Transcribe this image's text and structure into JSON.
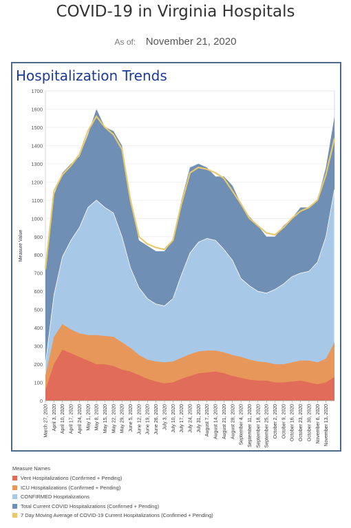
{
  "header": {
    "title": "COVID-19 in Virginia Hospitals",
    "as_of_label": "As of:",
    "as_of_date": "November 21, 2020"
  },
  "chart": {
    "title": "Hospitalization Trends"
  },
  "legend": {
    "title": "Measure Names",
    "items": [
      {
        "label": "Vent Hospitalizations (Confirmed + Pending)",
        "color": "#e06c59"
      },
      {
        "label": "ICU Hospitalizations (Confirmed + Pending)",
        "color": "#e8975a"
      },
      {
        "label": "CONFIRMED Hospitalizations",
        "color": "#a8c8e8"
      },
      {
        "label": "Total Current COVID Hospitalizations (Confirmed + Pending)",
        "color": "#6f8fb5"
      },
      {
        "label": "7 Day Moving Average of COVID-19 Current Hospitalizations (Confirmed + Pending)",
        "color": "#e8c86a"
      }
    ]
  },
  "chart_data": {
    "type": "area",
    "ylabel": "Measure Value",
    "ylim": [
      0,
      1700
    ],
    "yticks": [
      0,
      100,
      200,
      300,
      400,
      500,
      600,
      700,
      800,
      900,
      1000,
      1100,
      1200,
      1300,
      1400,
      1500,
      1600,
      1700
    ],
    "x": [
      "2020-03-27",
      "2020-04-03",
      "2020-04-10",
      "2020-04-17",
      "2020-04-24",
      "2020-05-01",
      "2020-05-08",
      "2020-05-15",
      "2020-05-22",
      "2020-05-29",
      "2020-06-05",
      "2020-06-12",
      "2020-06-19",
      "2020-06-26",
      "2020-07-03",
      "2020-07-10",
      "2020-07-17",
      "2020-07-24",
      "2020-07-31",
      "2020-08-07",
      "2020-08-14",
      "2020-08-21",
      "2020-08-28",
      "2020-09-04",
      "2020-09-11",
      "2020-09-18",
      "2020-09-25",
      "2020-10-02",
      "2020-10-09",
      "2020-10-16",
      "2020-10-23",
      "2020-10-30",
      "2020-11-06",
      "2020-11-13",
      "2020-11-20"
    ],
    "xtick_labels": [
      "March 27, 2020",
      "April 3, 2020",
      "April 10, 2020",
      "April 17, 2020",
      "April 24, 2020",
      "May 1, 2020",
      "May 8, 2020",
      "May 15, 2020",
      "May 22, 2020",
      "May 29, 2020",
      "June 5, 2020",
      "June 12, 2020",
      "June 19, 2020",
      "June 26, 2020",
      "July 3, 2020",
      "July 10, 2020",
      "July 17, 2020",
      "July 24, 2020",
      "July 31, 2020",
      "August 7, 2020",
      "August 14, 2020",
      "August 21, 2020",
      "August 28, 2020",
      "September 4, 2020",
      "September 11, 2020",
      "September 18, 2020",
      "September 25, 2020",
      "October 2, 2020",
      "October 9, 2020",
      "October 16, 2020",
      "October 23, 2020",
      "October 30, 2020",
      "November 6, 2020",
      "November 13, 2020"
    ],
    "series": [
      {
        "name": "Vent Hospitalizations (Confirmed + Pending)",
        "values": [
          60,
          200,
          280,
          260,
          240,
          220,
          200,
          200,
          190,
          170,
          160,
          140,
          120,
          105,
          95,
          100,
          120,
          135,
          150,
          155,
          160,
          150,
          135,
          125,
          115,
          110,
          110,
          100,
          100,
          105,
          110,
          100,
          90,
          100,
          130
        ]
      },
      {
        "name": "ICU Hospitalizations (Confirmed + Pending)",
        "values": [
          140,
          350,
          420,
          390,
          370,
          360,
          360,
          355,
          350,
          320,
          290,
          250,
          225,
          215,
          210,
          215,
          235,
          255,
          270,
          275,
          275,
          265,
          250,
          240,
          225,
          215,
          210,
          200,
          200,
          210,
          220,
          220,
          210,
          230,
          320
        ]
      },
      {
        "name": "CONFIRMED Hospitalizations",
        "values": [
          200,
          580,
          790,
          880,
          950,
          1060,
          1100,
          1060,
          1030,
          900,
          730,
          620,
          560,
          530,
          520,
          560,
          690,
          810,
          870,
          890,
          880,
          830,
          770,
          670,
          630,
          600,
          590,
          610,
          640,
          680,
          700,
          710,
          760,
          900,
          1160
        ]
      },
      {
        "name": "Total Current COVID Hospitalizations (Confirmed + Pending)",
        "values": [
          750,
          1130,
          1250,
          1300,
          1340,
          1460,
          1600,
          1500,
          1480,
          1400,
          1100,
          880,
          850,
          820,
          820,
          880,
          1100,
          1280,
          1300,
          1280,
          1230,
          1230,
          1180,
          1080,
          1010,
          960,
          900,
          900,
          960,
          1000,
          1060,
          1060,
          1100,
          1280,
          1560
        ]
      },
      {
        "name": "7 Day Moving Average of COVID-19 Current Hospitalizations (Confirmed + Pending)",
        "values": [
          720,
          1150,
          1240,
          1290,
          1350,
          1480,
          1560,
          1500,
          1460,
          1380,
          1100,
          900,
          860,
          840,
          830,
          880,
          1080,
          1250,
          1280,
          1270,
          1250,
          1220,
          1150,
          1080,
          1000,
          960,
          920,
          910,
          950,
          1000,
          1040,
          1060,
          1100,
          1240,
          1440
        ]
      }
    ]
  }
}
